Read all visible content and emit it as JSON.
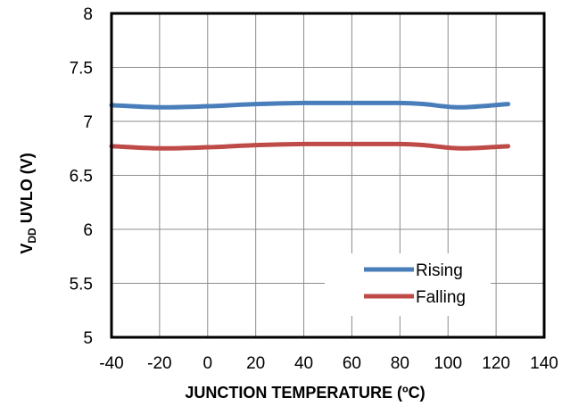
{
  "chart_data": {
    "type": "line",
    "xlabel": "JUNCTION TEMPERATURE (ºC)",
    "ylabel": {
      "main": "V",
      "sub": "DD",
      "rest": " UVLO (V)"
    },
    "xlim": [
      -40,
      140
    ],
    "ylim": [
      5,
      8
    ],
    "xticks": [
      "-40",
      "-20",
      "0",
      "20",
      "40",
      "60",
      "80",
      "100",
      "120",
      "140"
    ],
    "yticks": [
      "5",
      "5.5",
      "6",
      "6.5",
      "7",
      "7.5",
      "8"
    ],
    "grid": true,
    "legend_position": "bottom-right",
    "series": [
      {
        "name": "Rising",
        "color": "#4a7ebb",
        "x": [
          -40,
          -20,
          0,
          20,
          40,
          60,
          80,
          90,
          105,
          125
        ],
        "y": [
          7.15,
          7.13,
          7.14,
          7.16,
          7.17,
          7.17,
          7.17,
          7.16,
          7.13,
          7.16
        ]
      },
      {
        "name": "Falling",
        "color": "#be4b48",
        "x": [
          -40,
          -20,
          0,
          20,
          40,
          60,
          80,
          90,
          105,
          125
        ],
        "y": [
          6.77,
          6.75,
          6.76,
          6.78,
          6.79,
          6.79,
          6.79,
          6.78,
          6.75,
          6.77
        ]
      }
    ]
  }
}
